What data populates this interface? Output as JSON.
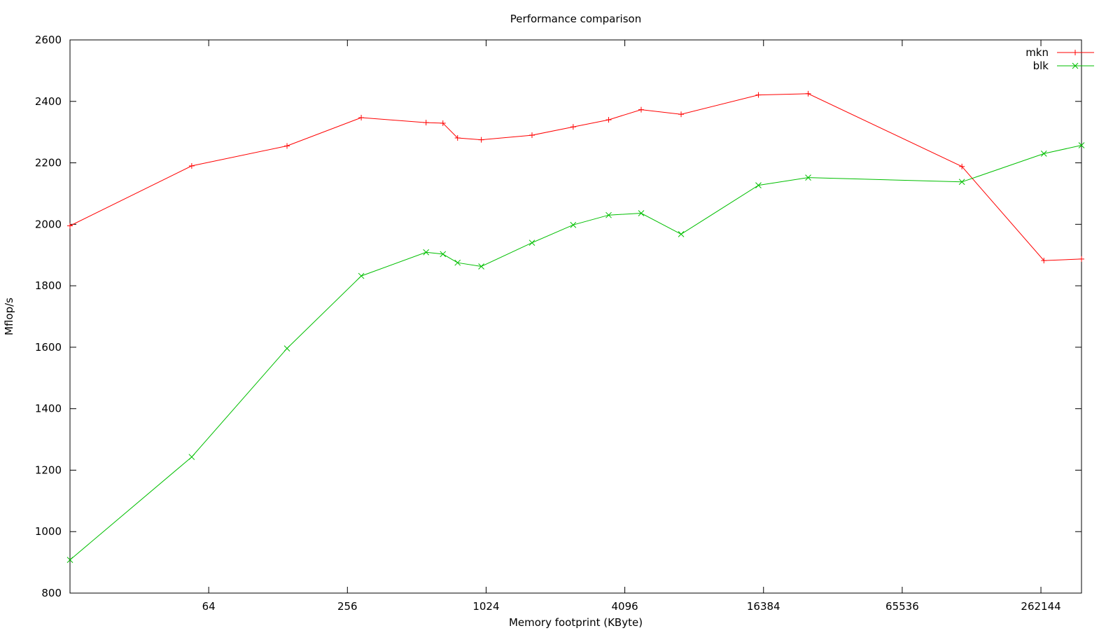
{
  "chart_data": {
    "type": "line",
    "title": "Performance comparison",
    "xlabel": "Memory footprint (KByte)",
    "ylabel": "Mflop/s",
    "x_scale": "log2",
    "xlim": [
      16,
      393216
    ],
    "ylim": [
      800,
      2600
    ],
    "x_ticks": [
      64,
      256,
      1024,
      4096,
      16384,
      65536,
      262144
    ],
    "x_tick_labels": [
      "64",
      "256",
      "1024",
      "4096",
      "16384",
      "65536",
      "262144"
    ],
    "y_ticks": [
      800,
      1000,
      1200,
      1400,
      1600,
      1800,
      2000,
      2200,
      2400,
      2600
    ],
    "y_tick_labels": [
      "800",
      "1000",
      "1200",
      "1400",
      "1600",
      "1800",
      "2000",
      "2200",
      "2400",
      "2600"
    ],
    "grid": false,
    "legend_position": "top-right",
    "series": [
      {
        "name": "mkn",
        "color": "#ff0000",
        "marker": "plus",
        "x": [
          16,
          54,
          140,
          294,
          562,
          665,
          770,
          976,
          1620,
          2445,
          3485,
          4824,
          7190,
          15570,
          25600,
          119000,
          270000,
          393216
        ],
        "y": [
          1995,
          2190,
          2255,
          2347,
          2331,
          2329,
          2281,
          2275,
          2290,
          2317,
          2340,
          2373,
          2358,
          2421,
          2425,
          2188,
          1882,
          1887
        ]
      },
      {
        "name": "blk",
        "color": "#00bf00",
        "marker": "cross",
        "x": [
          16,
          54,
          140,
          294,
          562,
          665,
          770,
          976,
          1620,
          2445,
          3485,
          4824,
          7190,
          15570,
          25600,
          119000,
          270000,
          393216
        ],
        "y": [
          908,
          1243,
          1596,
          1832,
          1909,
          1903,
          1875,
          1863,
          1940,
          1998,
          2030,
          2036,
          1968,
          2127,
          2152,
          2138,
          2230,
          2257
        ]
      }
    ]
  }
}
